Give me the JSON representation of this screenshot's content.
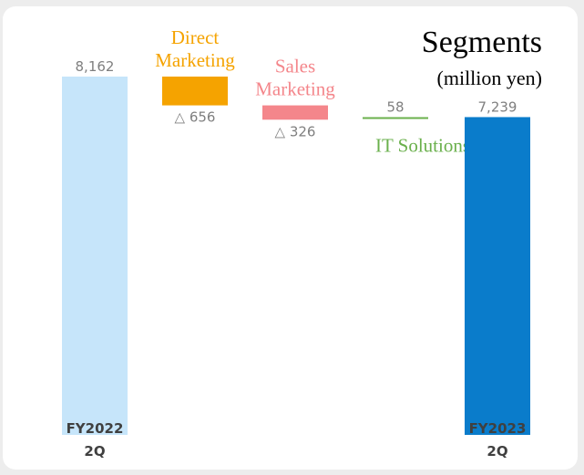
{
  "chart_data": {
    "type": "waterfall",
    "title": "Segments",
    "subtitle": "(million yen)",
    "ylim": [
      0,
      8500
    ],
    "items": [
      {
        "kind": "total",
        "label_lines": [
          "FY2022",
          "2Q"
        ],
        "value": 8162,
        "value_label": "8,162",
        "color": "#c6e5fa"
      },
      {
        "kind": "delta",
        "label_lines": [
          "Direct",
          "Marketing"
        ],
        "value": -656,
        "value_label": "△ 656",
        "color": "#f5a300"
      },
      {
        "kind": "delta",
        "label_lines": [
          "Sales",
          "Marketing"
        ],
        "value": -326,
        "value_label": "△ 326",
        "color": "#f4868b"
      },
      {
        "kind": "delta",
        "label_lines": [
          "IT Solutions"
        ],
        "value": 58,
        "value_label": "58",
        "color": "#6ab04c"
      },
      {
        "kind": "total",
        "label_lines": [
          "FY2023",
          "2Q"
        ],
        "value": 7239,
        "value_label": "7,239",
        "color": "#0a7ccb"
      }
    ]
  }
}
